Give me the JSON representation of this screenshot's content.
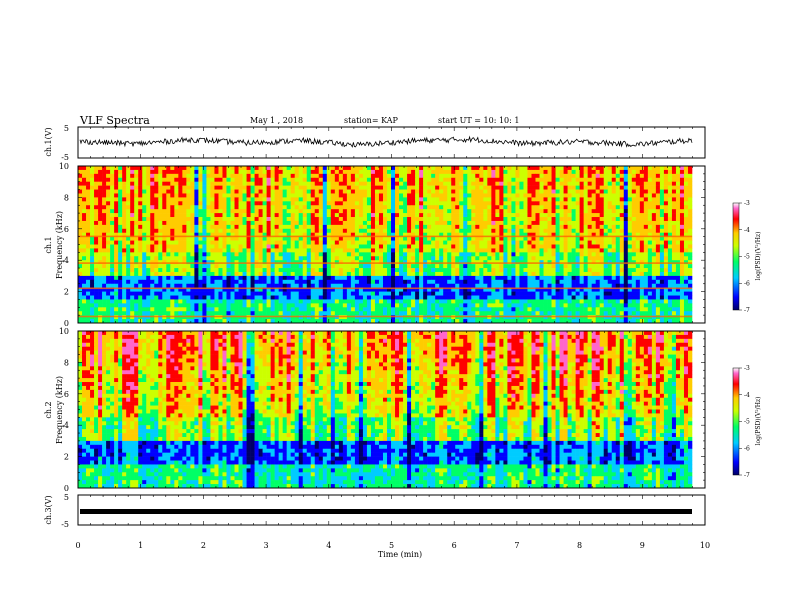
{
  "header": {
    "title": "VLF Spectra",
    "date": "May 1 , 2018",
    "station": "station= KAP",
    "start": "start UT = 10: 10: 1"
  },
  "chart_data": [
    {
      "type": "line",
      "id": "ch1-waveform",
      "ylabel": "ch.1(V)",
      "ylim": [
        -5,
        5
      ],
      "yticks": [
        "5",
        "-5"
      ],
      "xlim": [
        0,
        10
      ],
      "description_level": "noisy signal centered near 0 V, roughly -1 to +1 V",
      "series": [
        {
          "values": [
            0.2,
            -0.6,
            0.8,
            -0.3,
            0.5,
            -1.0,
            0.4,
            0.9,
            -0.5,
            0.1,
            -0.8,
            0.6
          ]
        }
      ]
    },
    {
      "type": "heatmap",
      "id": "ch1-spectrogram",
      "ylabel": "ch.1\nFrequency (kHz)",
      "ylabel_top": "ch.1",
      "ylabel_bottom": "Frequency (kHz)",
      "ylim": [
        0,
        10
      ],
      "yticks": [
        "0",
        "2",
        "4",
        "6",
        "8",
        "10"
      ],
      "xlim": [
        0,
        10
      ],
      "colorbar": {
        "label": "log(PSD)(V²/Hz)",
        "ticks": [
          "-3",
          "-4",
          "-5",
          "-6",
          "-7"
        ],
        "range": [
          -7,
          -3
        ]
      },
      "bands_khz": [
        0.4,
        2.2,
        3.8,
        5.5
      ]
    },
    {
      "type": "heatmap",
      "id": "ch2-spectrogram",
      "ylabel_top": "ch.2",
      "ylabel_bottom": "Frequency (kHz)",
      "ylim": [
        0,
        10
      ],
      "yticks": [
        "0",
        "2",
        "4",
        "6",
        "8",
        "10"
      ],
      "xlim": [
        0,
        10
      ],
      "colorbar": {
        "label": "log(PSD)(V²/Hz)",
        "ticks": [
          "-3",
          "-4",
          "-5",
          "-6",
          "-7"
        ],
        "range": [
          -7,
          -3
        ]
      }
    },
    {
      "type": "line",
      "id": "ch3-waveform",
      "ylabel": "ch.3(V)",
      "ylim": [
        -5,
        5
      ],
      "yticks": [
        "5",
        "-5"
      ],
      "xlim": [
        0,
        10
      ],
      "series": [
        {
          "values": [
            0,
            0
          ]
        }
      ]
    }
  ],
  "xaxis": {
    "label": "Time (min)",
    "ticks": [
      "0",
      "1",
      "2",
      "3",
      "4",
      "5",
      "6",
      "7",
      "8",
      "9",
      "10"
    ]
  },
  "colors": {
    "colormap": [
      "#000066",
      "#0000ff",
      "#00ccff",
      "#00ff66",
      "#ccff00",
      "#ffcc00",
      "#ff0000",
      "#ff66cc",
      "#ffffff"
    ]
  }
}
